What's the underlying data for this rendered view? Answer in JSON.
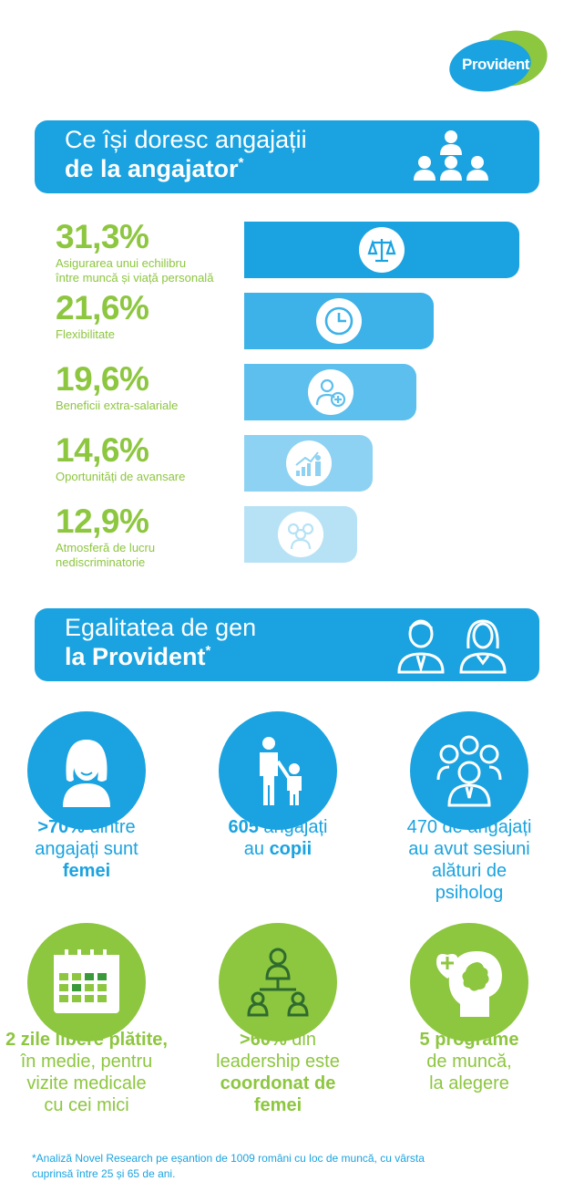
{
  "brand": {
    "logo_text": "Provident",
    "blue": "#1aa3e0",
    "green": "#8dc63f"
  },
  "section1": {
    "title_line1": "Ce își doresc angajații",
    "title_line2": "de la angajator",
    "star": "*",
    "icon": "people-group-icon"
  },
  "chart_data": {
    "type": "bar",
    "orientation": "horizontal",
    "categories": [
      "Asigurarea unui echilibru între muncă și viață personală",
      "Flexibilitate",
      "Beneficii extra-salariale",
      "Oportunități de avansare",
      "Atmosferă de lucru nediscriminatorie"
    ],
    "values": [
      31.3,
      21.6,
      19.6,
      14.6,
      12.9
    ],
    "value_labels": [
      "31,3%",
      "21,6%",
      "19,6%",
      "14,6%",
      "12,9%"
    ],
    "label_lines": [
      [
        "Asigurarea unui echilibru",
        "între muncă și viață personală"
      ],
      [
        "Flexibilitate"
      ],
      [
        "Beneficii extra-salariale"
      ],
      [
        "Oportunități de avansare"
      ],
      [
        "Atmosferă de lucru",
        "nediscriminatorie"
      ]
    ],
    "bar_colors": [
      "#1aa3e0",
      "#3db2e8",
      "#5cbfed",
      "#8dd2f2",
      "#b7e2f6"
    ],
    "icons": [
      "scales-icon",
      "clock-icon",
      "person-plus-icon",
      "growth-chart-icon",
      "group-icon"
    ]
  },
  "section2": {
    "title_line1": "Egalitatea de gen",
    "title_line2": "la Provident",
    "star": "*",
    "icons": [
      "man-icon",
      "woman-icon"
    ]
  },
  "stats": [
    {
      "icon": "woman-face-icon",
      "color": "blue",
      "lines": [
        [
          {
            "t": ">70%",
            "b": true
          },
          {
            "t": " dintre",
            "b": false
          }
        ],
        [
          {
            "t": "angajați sunt",
            "b": false
          }
        ],
        [
          {
            "t": "femei",
            "b": true
          }
        ]
      ]
    },
    {
      "icon": "parent-child-icon",
      "color": "blue",
      "lines": [
        [
          {
            "t": "605",
            "b": true
          },
          {
            "t": " angajați",
            "b": false
          }
        ],
        [
          {
            "t": "au ",
            "b": false
          },
          {
            "t": "copii",
            "b": true
          }
        ]
      ]
    },
    {
      "icon": "team-icon",
      "color": "blue",
      "lines": [
        [
          {
            "t": "470 de angajați",
            "b": false
          }
        ],
        [
          {
            "t": "au avut sesiuni",
            "b": false
          }
        ],
        [
          {
            "t": "alături de",
            "b": false
          }
        ],
        [
          {
            "t": "psiholog",
            "b": false
          }
        ]
      ]
    },
    {
      "icon": "calendar-icon",
      "color": "green",
      "lines": [
        [
          {
            "t": "2 zile libere plătite,",
            "b": true
          }
        ],
        [
          {
            "t": "în medie, pentru",
            "b": false
          }
        ],
        [
          {
            "t": "vizite medicale",
            "b": false
          }
        ],
        [
          {
            "t": "cu cei mici",
            "b": false
          }
        ]
      ]
    },
    {
      "icon": "leadership-icon",
      "color": "green",
      "lines": [
        [
          {
            "t": ">60%",
            "b": true
          },
          {
            "t": " din",
            "b": false
          }
        ],
        [
          {
            "t": "leadership este",
            "b": false
          }
        ],
        [
          {
            "t": "coordonat de femei",
            "b": true
          }
        ]
      ]
    },
    {
      "icon": "mental-health-icon",
      "color": "green",
      "lines": [
        [
          {
            "t": "5 programe",
            "b": true
          }
        ],
        [
          {
            "t": "de muncă,",
            "b": false
          }
        ],
        [
          {
            "t": "la alegere",
            "b": false
          }
        ]
      ]
    }
  ],
  "footnote_lines": [
    "*Analiză Novel Research pe eșantion de 1009 români cu loc de muncă, cu vârsta",
    "cuprinsă între 25 și 65 de ani."
  ]
}
